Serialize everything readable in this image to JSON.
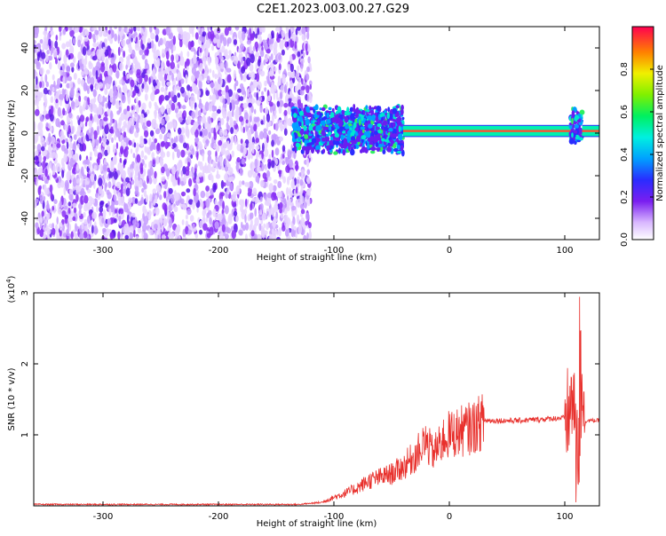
{
  "title": "C2E1.2023.003.00.27.G29",
  "chart_data": [
    {
      "type": "heatmap",
      "xlabel": "Height of straight line (km)",
      "ylabel": "Frequency (Hz)",
      "xlim": [
        -360,
        130
      ],
      "ylim": [
        -50,
        50
      ],
      "xticks": [
        -300,
        -200,
        -100,
        0,
        100
      ],
      "yticks": [
        -40,
        -20,
        0,
        20,
        40
      ],
      "colorbar": {
        "label": "Normalized spectral amplitude",
        "range": [
          0.0,
          1.0
        ],
        "ticks": [
          "0.0",
          "0.2",
          "0.4",
          "0.6",
          "0.8"
        ]
      },
      "regions": [
        {
          "x_range": [
            -360,
            -120
          ],
          "frequency_range": [
            -50,
            50
          ],
          "amplitude": 0.1
        },
        {
          "x_range": [
            -135,
            -40
          ],
          "frequency_range": [
            -10,
            13
          ],
          "amplitude": 0.3
        },
        {
          "x_range": [
            -40,
            105
          ],
          "frequency_range": [
            -1,
            3
          ],
          "amplitude": 0.95
        },
        {
          "x_range": [
            105,
            115
          ],
          "frequency_range": [
            -6,
            12
          ],
          "amplitude": 0.4
        },
        {
          "x_range": [
            115,
            130
          ],
          "frequency_range": [
            -1,
            3
          ],
          "amplitude": 0.95
        }
      ]
    },
    {
      "type": "line",
      "xlabel": "Height of straight line (km)",
      "ylabel": "SNR (10 * v/v)",
      "y_multiplier": "(x10",
      "y_multiplier_exp": "4",
      "y_multiplier_close": ")",
      "xlim": [
        -360,
        130
      ],
      "ylim": [
        0,
        3
      ],
      "xticks": [
        -300,
        -200,
        -100,
        0,
        100
      ],
      "yticks": [
        1,
        2,
        3
      ],
      "series": [
        {
          "color": "#e8302c",
          "x": [
            -360,
            -300,
            -200,
            -130,
            -110,
            -100,
            -90,
            -80,
            -70,
            -60,
            -50,
            -40,
            -30,
            -25,
            -20,
            -15,
            -10,
            -5,
            0,
            10,
            20,
            30,
            40,
            60,
            80,
            100,
            104,
            108,
            112,
            115,
            118,
            130
          ],
          "y": [
            0.02,
            0.02,
            0.02,
            0.02,
            0.05,
            0.12,
            0.18,
            0.25,
            0.35,
            0.4,
            0.45,
            0.55,
            0.7,
            0.8,
            0.9,
            0.75,
            0.8,
            0.95,
            1.0,
            1.05,
            1.1,
            1.2,
            1.2,
            1.2,
            1.22,
            1.24,
            1.3,
            1.6,
            0.6,
            1.8,
            1.2,
            1.2
          ]
        }
      ]
    }
  ]
}
